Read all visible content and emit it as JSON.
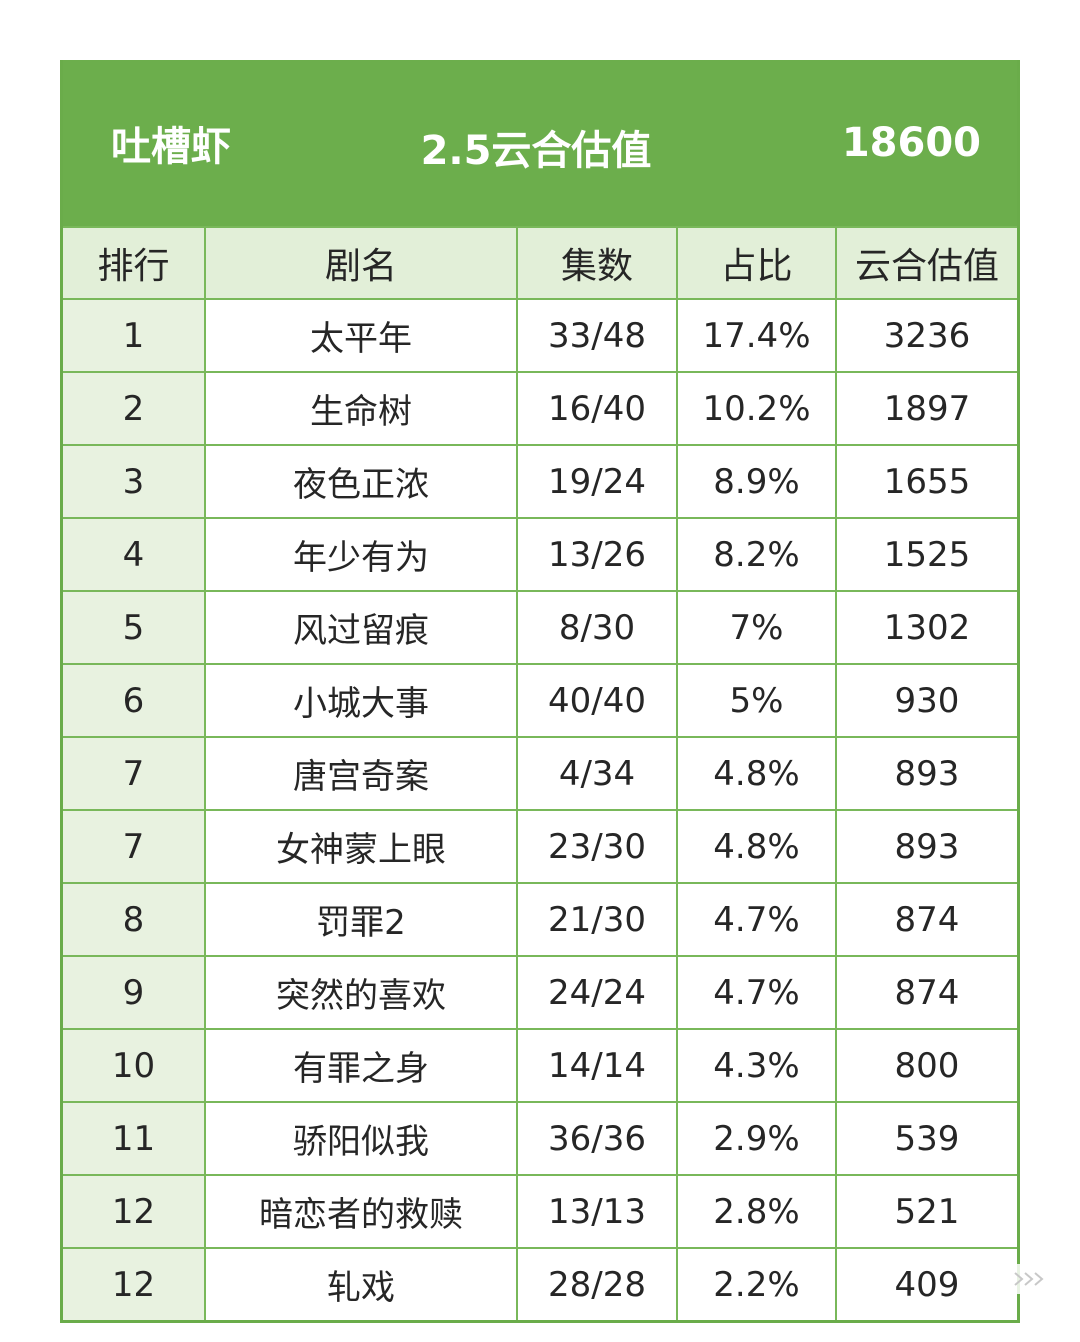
{
  "banner": {
    "left": "吐槽虾",
    "center": "2.5云合估值",
    "right": "18600"
  },
  "headers": [
    "排行",
    "剧名",
    "集数",
    "占比",
    "云合估值"
  ],
  "rows": [
    {
      "rank": "1",
      "title": "太平年",
      "episodes": "33/48",
      "share": "17.4%",
      "value": "3236"
    },
    {
      "rank": "2",
      "title": "生命树",
      "episodes": "16/40",
      "share": "10.2%",
      "value": "1897"
    },
    {
      "rank": "3",
      "title": "夜色正浓",
      "episodes": "19/24",
      "share": "8.9%",
      "value": "1655"
    },
    {
      "rank": "4",
      "title": "年少有为",
      "episodes": "13/26",
      "share": "8.2%",
      "value": "1525"
    },
    {
      "rank": "5",
      "title": "风过留痕",
      "episodes": "8/30",
      "share": "7%",
      "value": "1302"
    },
    {
      "rank": "6",
      "title": "小城大事",
      "episodes": "40/40",
      "share": "5%",
      "value": "930"
    },
    {
      "rank": "7",
      "title": "唐宫奇案",
      "episodes": "4/34",
      "share": "4.8%",
      "value": "893"
    },
    {
      "rank": "7",
      "title": "女神蒙上眼",
      "episodes": "23/30",
      "share": "4.8%",
      "value": "893"
    },
    {
      "rank": "8",
      "title": "罚罪2",
      "episodes": "21/30",
      "share": "4.7%",
      "value": "874"
    },
    {
      "rank": "9",
      "title": "突然的喜欢",
      "episodes": "24/24",
      "share": "4.7%",
      "value": "874"
    },
    {
      "rank": "10",
      "title": "有罪之身",
      "episodes": "14/14",
      "share": "4.3%",
      "value": "800"
    },
    {
      "rank": "11",
      "title": "骄阳似我",
      "episodes": "36/36",
      "share": "2.9%",
      "value": "539"
    },
    {
      "rank": "12",
      "title": "暗恋者的救赎",
      "episodes": "13/13",
      "share": "2.8%",
      "value": "521"
    },
    {
      "rank": "12",
      "title": "轧戏",
      "episodes": "28/28",
      "share": "2.2%",
      "value": "409"
    }
  ],
  "colors": {
    "banner": "#6cae4c",
    "border": "#79b85a",
    "header_bg": "#e2efd8",
    "rank_bg": "#e8f2e0"
  },
  "icons": {
    "corner": "collapse-icon"
  }
}
